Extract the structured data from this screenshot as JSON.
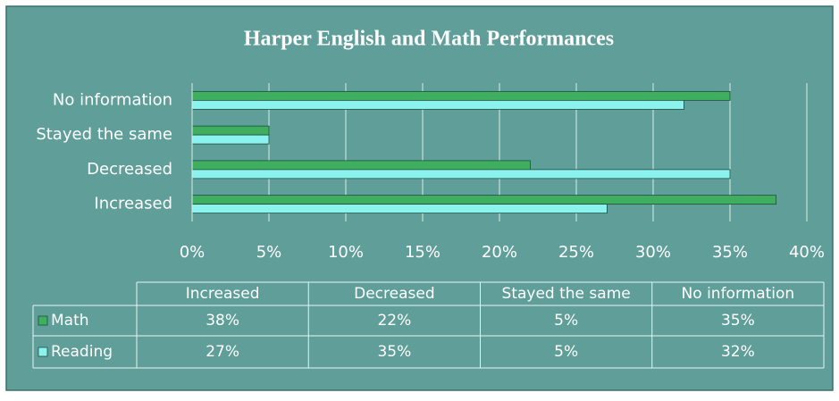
{
  "chart_data": {
    "type": "bar",
    "orientation": "horizontal",
    "title": "Harper English and Math Performances",
    "categories": [
      "Increased",
      "Decreased",
      "Stayed the same",
      "No information"
    ],
    "series": [
      {
        "name": "Math",
        "color": "#3fae5f",
        "values": [
          38,
          22,
          5,
          35
        ],
        "value_labels": [
          "38%",
          "22%",
          "5%",
          "35%"
        ]
      },
      {
        "name": "Reading",
        "color": "#8cf2ee",
        "values": [
          27,
          35,
          5,
          32
        ],
        "value_labels": [
          "27%",
          "35%",
          "5%",
          "32%"
        ]
      }
    ],
    "xlim": [
      0,
      40
    ],
    "xticks": [
      {
        "value": 0,
        "label": "0%"
      },
      {
        "value": 5,
        "label": "5%"
      },
      {
        "value": 10,
        "label": "10%"
      },
      {
        "value": 15,
        "label": "15%"
      },
      {
        "value": 20,
        "label": "20%"
      },
      {
        "value": 25,
        "label": "25%"
      },
      {
        "value": 30,
        "label": "30%"
      },
      {
        "value": 35,
        "label": "35%"
      },
      {
        "value": 40,
        "label": "40%"
      }
    ],
    "grid": true,
    "data_table": true
  }
}
